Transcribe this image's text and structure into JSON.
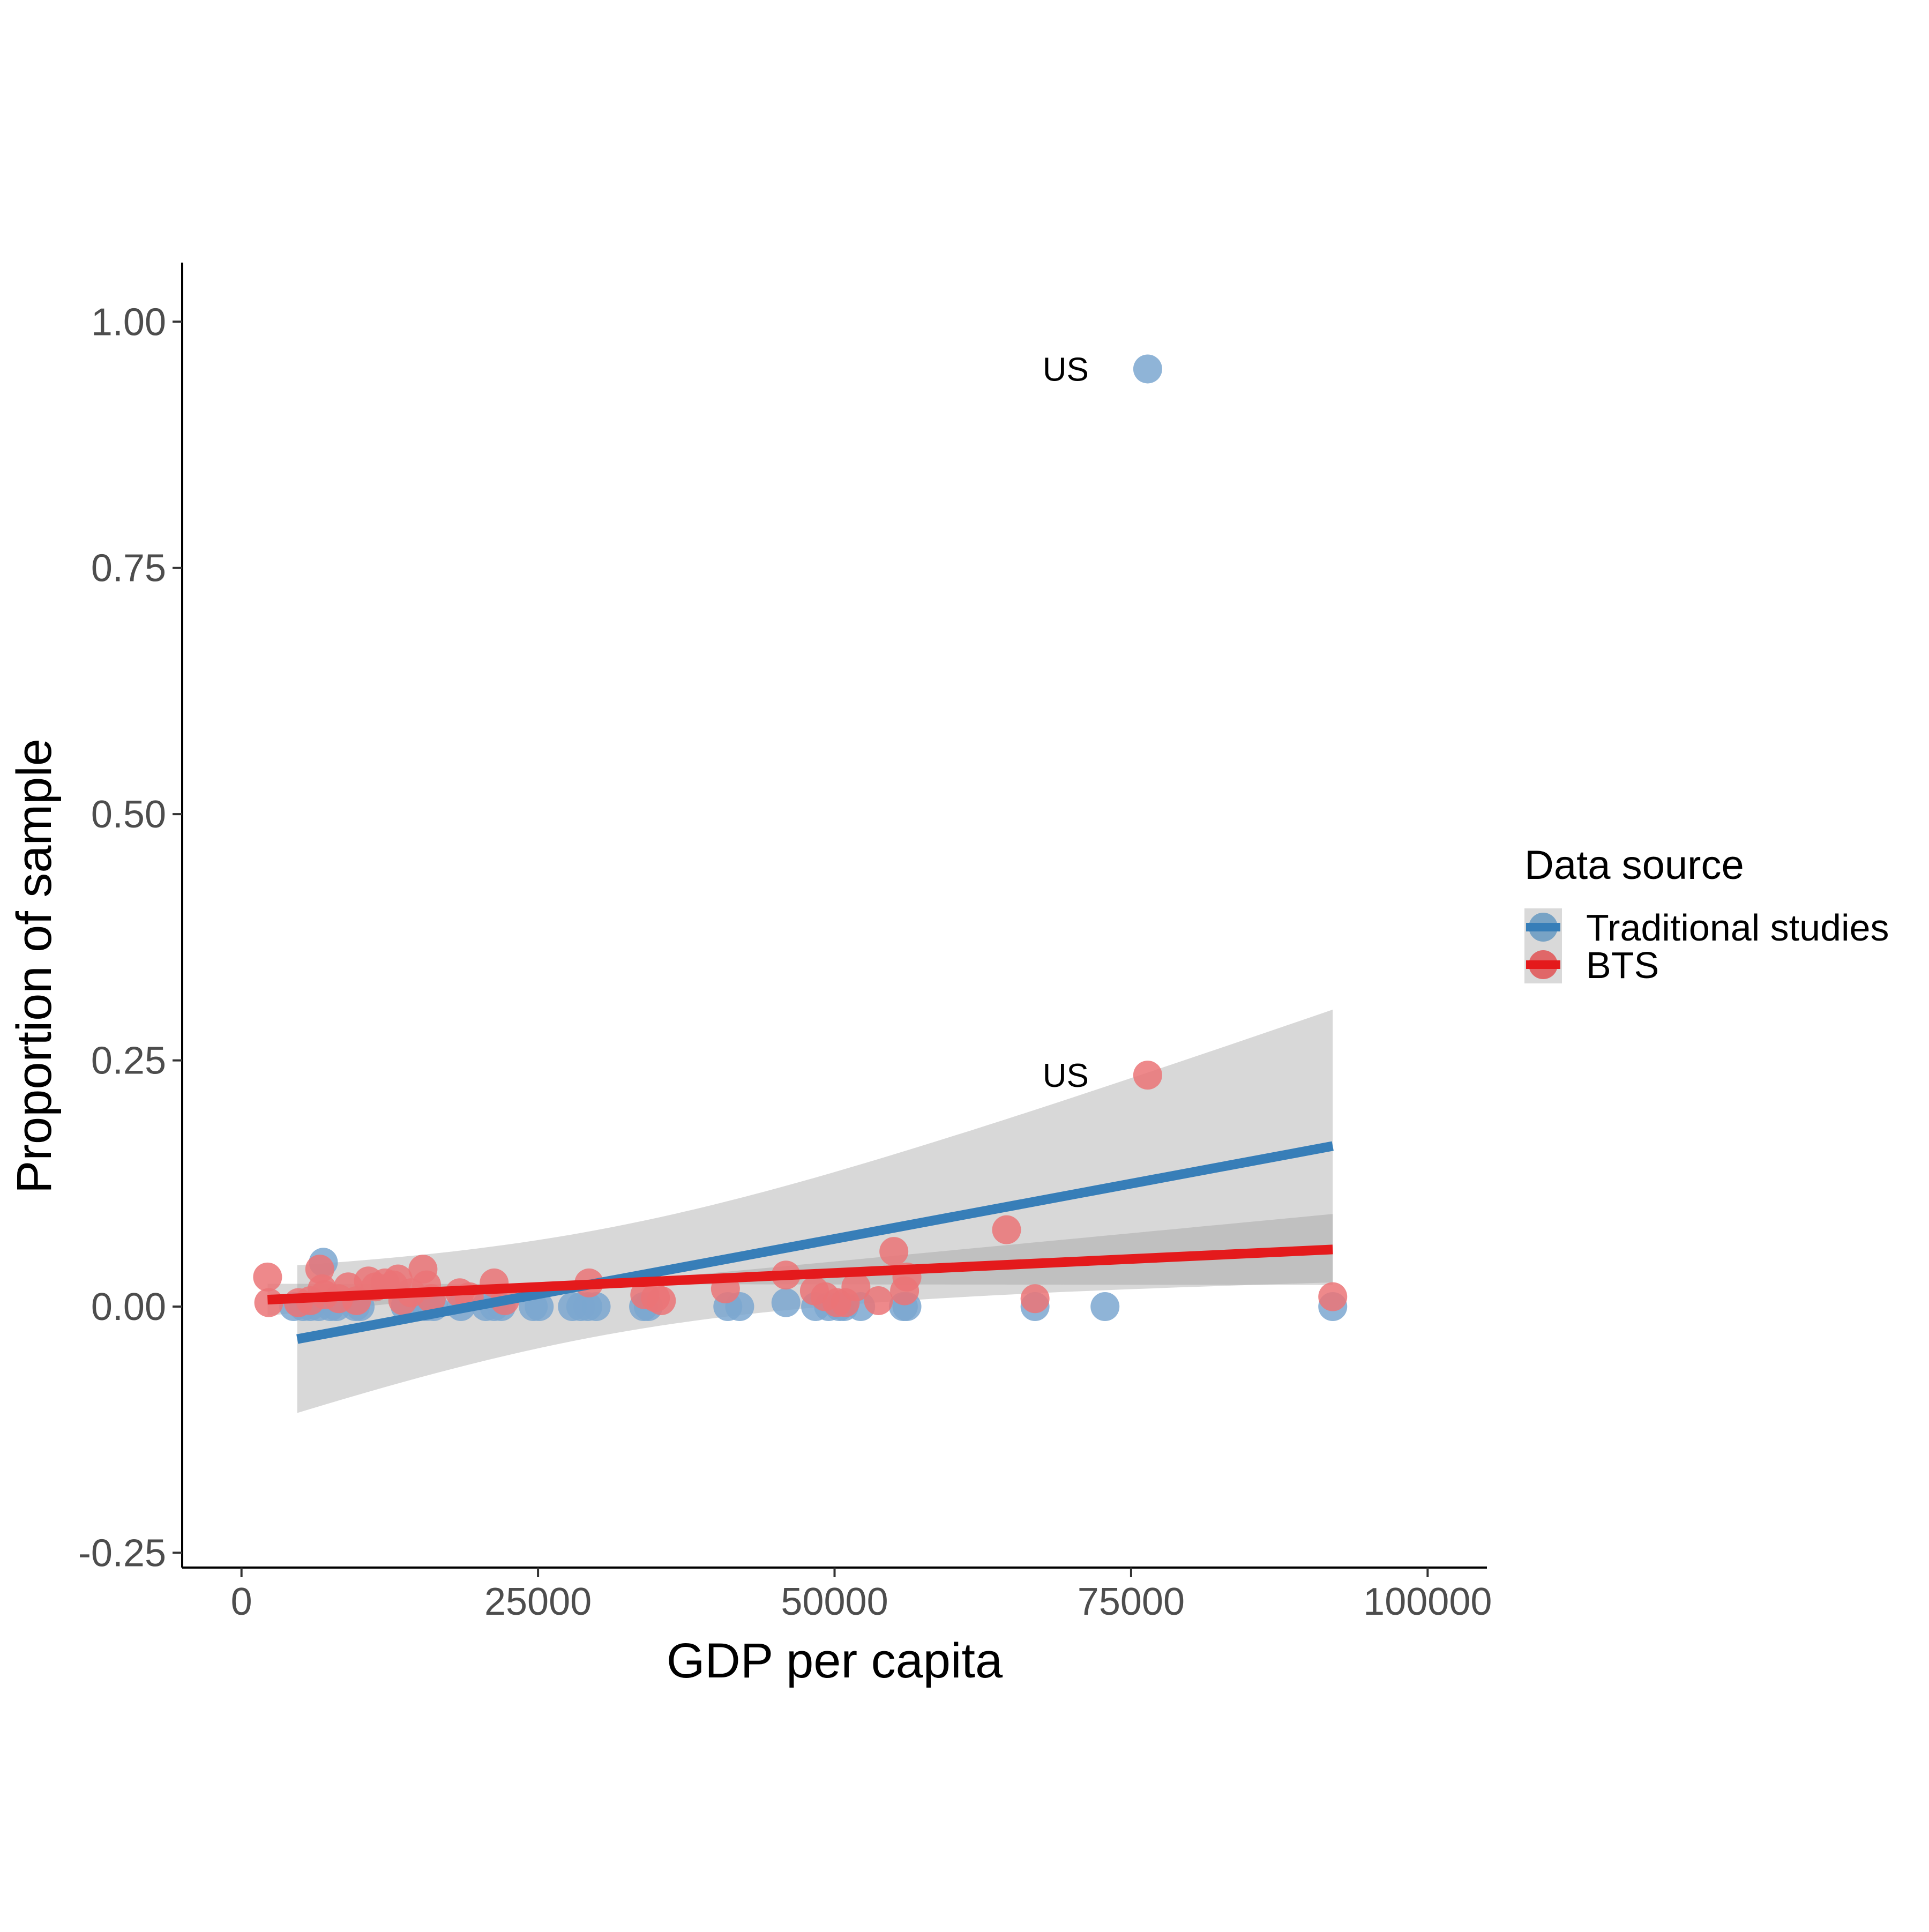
{
  "chart_data": {
    "type": "scatter",
    "xlabel": "GDP per capita",
    "ylabel": "Proportion of sample",
    "xlim": [
      -5000,
      105000
    ],
    "ylim": [
      -0.265,
      1.06
    ],
    "x_ticks": [
      0,
      25000,
      50000,
      75000,
      100000
    ],
    "x_tick_labels": [
      "0",
      "25000",
      "50000",
      "75000",
      "100000"
    ],
    "y_ticks": [
      -0.25,
      0,
      0.25,
      0.5,
      0.75,
      1.0
    ],
    "y_tick_labels": [
      "-0.25",
      "0.00",
      "0.25",
      "0.50",
      "0.75",
      "1.00"
    ],
    "grid": false,
    "legend": {
      "title": "Data source",
      "placement": "right",
      "entries": [
        {
          "label": "Traditional studies",
          "color": "#377EB8"
        },
        {
          "label": "BTS",
          "color": "#E41A1C"
        }
      ]
    },
    "series": [
      {
        "name": "Traditional studies",
        "color": "#377EB8",
        "point_color": "#7BA7D0",
        "points": [
          [
            4400,
            0.0
          ],
          [
            5200,
            0.0
          ],
          [
            5800,
            0.0
          ],
          [
            6500,
            0.0
          ],
          [
            6900,
            0.045
          ],
          [
            7500,
            0.0
          ],
          [
            8000,
            0.0
          ],
          [
            9600,
            0.0
          ],
          [
            10000,
            0.0
          ],
          [
            13800,
            0.0
          ],
          [
            15600,
            0.0
          ],
          [
            16200,
            0.0
          ],
          [
            18500,
            0.0
          ],
          [
            20600,
            0.0
          ],
          [
            21300,
            0.0
          ],
          [
            21900,
            0.0
          ],
          [
            24600,
            0.0
          ],
          [
            25100,
            0.0
          ],
          [
            27900,
            0.0
          ],
          [
            28600,
            0.0
          ],
          [
            29200,
            0.0
          ],
          [
            29900,
            0.0
          ],
          [
            33900,
            0.0
          ],
          [
            34300,
            0.0
          ],
          [
            41000,
            0.0
          ],
          [
            42000,
            0.0
          ],
          [
            45900,
            0.004
          ],
          [
            48400,
            0.0
          ],
          [
            49500,
            0.0
          ],
          [
            50400,
            0.0
          ],
          [
            50800,
            0.0
          ],
          [
            52200,
            0.0
          ],
          [
            55800,
            0.0
          ],
          [
            56100,
            0.0
          ],
          [
            66900,
            0.0
          ],
          [
            72800,
            0.0
          ],
          [
            76400,
            0.952
          ],
          [
            92000,
            0.0
          ]
        ],
        "fit": {
          "x": [
            4700,
            92000
          ],
          "y": [
            -0.033,
            0.163
          ]
        },
        "ci_band": {
          "x": [
            4700,
            92000
          ],
          "lower": [
            -0.108,
            0.025
          ],
          "upper": [
            0.042,
            0.302
          ],
          "center_x": 30000
        }
      },
      {
        "name": "BTS",
        "color": "#E41A1C",
        "point_color": "#EB7477",
        "points": [
          [
            2200,
            0.03
          ],
          [
            2300,
            0.004
          ],
          [
            4800,
            0.004
          ],
          [
            5800,
            0.006
          ],
          [
            6600,
            0.038
          ],
          [
            6800,
            0.018
          ],
          [
            7000,
            0.012
          ],
          [
            8200,
            0.008
          ],
          [
            9000,
            0.02
          ],
          [
            9700,
            0.006
          ],
          [
            10700,
            0.026
          ],
          [
            11300,
            0.02
          ],
          [
            12100,
            0.024
          ],
          [
            12800,
            0.022
          ],
          [
            13200,
            0.028
          ],
          [
            13600,
            0.006
          ],
          [
            14300,
            0.014
          ],
          [
            15300,
            0.038
          ],
          [
            15600,
            0.022
          ],
          [
            16000,
            0.008
          ],
          [
            18400,
            0.014
          ],
          [
            19200,
            0.01
          ],
          [
            21300,
            0.024
          ],
          [
            22200,
            0.006
          ],
          [
            29300,
            0.024
          ],
          [
            34000,
            0.012
          ],
          [
            34900,
            0.009
          ],
          [
            35400,
            0.006
          ],
          [
            40800,
            0.018
          ],
          [
            45900,
            0.032
          ],
          [
            48300,
            0.016
          ],
          [
            49200,
            0.01
          ],
          [
            50200,
            0.004
          ],
          [
            50900,
            0.004
          ],
          [
            51800,
            0.02
          ],
          [
            53700,
            0.006
          ],
          [
            55000,
            0.056
          ],
          [
            55900,
            0.016
          ],
          [
            56100,
            0.03
          ],
          [
            64500,
            0.078
          ],
          [
            66900,
            0.008
          ],
          [
            76400,
            0.235
          ],
          [
            92000,
            0.01
          ]
        ],
        "fit": {
          "x": [
            2200,
            92000
          ],
          "y": [
            0.007,
            0.058
          ]
        },
        "ci_band": {
          "x": [
            2200,
            92000
          ],
          "lower": [
            -0.004,
            0.022
          ],
          "upper": [
            0.018,
            0.09
          ],
          "center_x": 30000
        }
      }
    ],
    "annotations": [
      {
        "text": "US",
        "x": 76400,
        "y": 0.952,
        "series": "Traditional studies"
      },
      {
        "text": "US",
        "x": 76400,
        "y": 0.235,
        "series": "BTS"
      }
    ]
  }
}
